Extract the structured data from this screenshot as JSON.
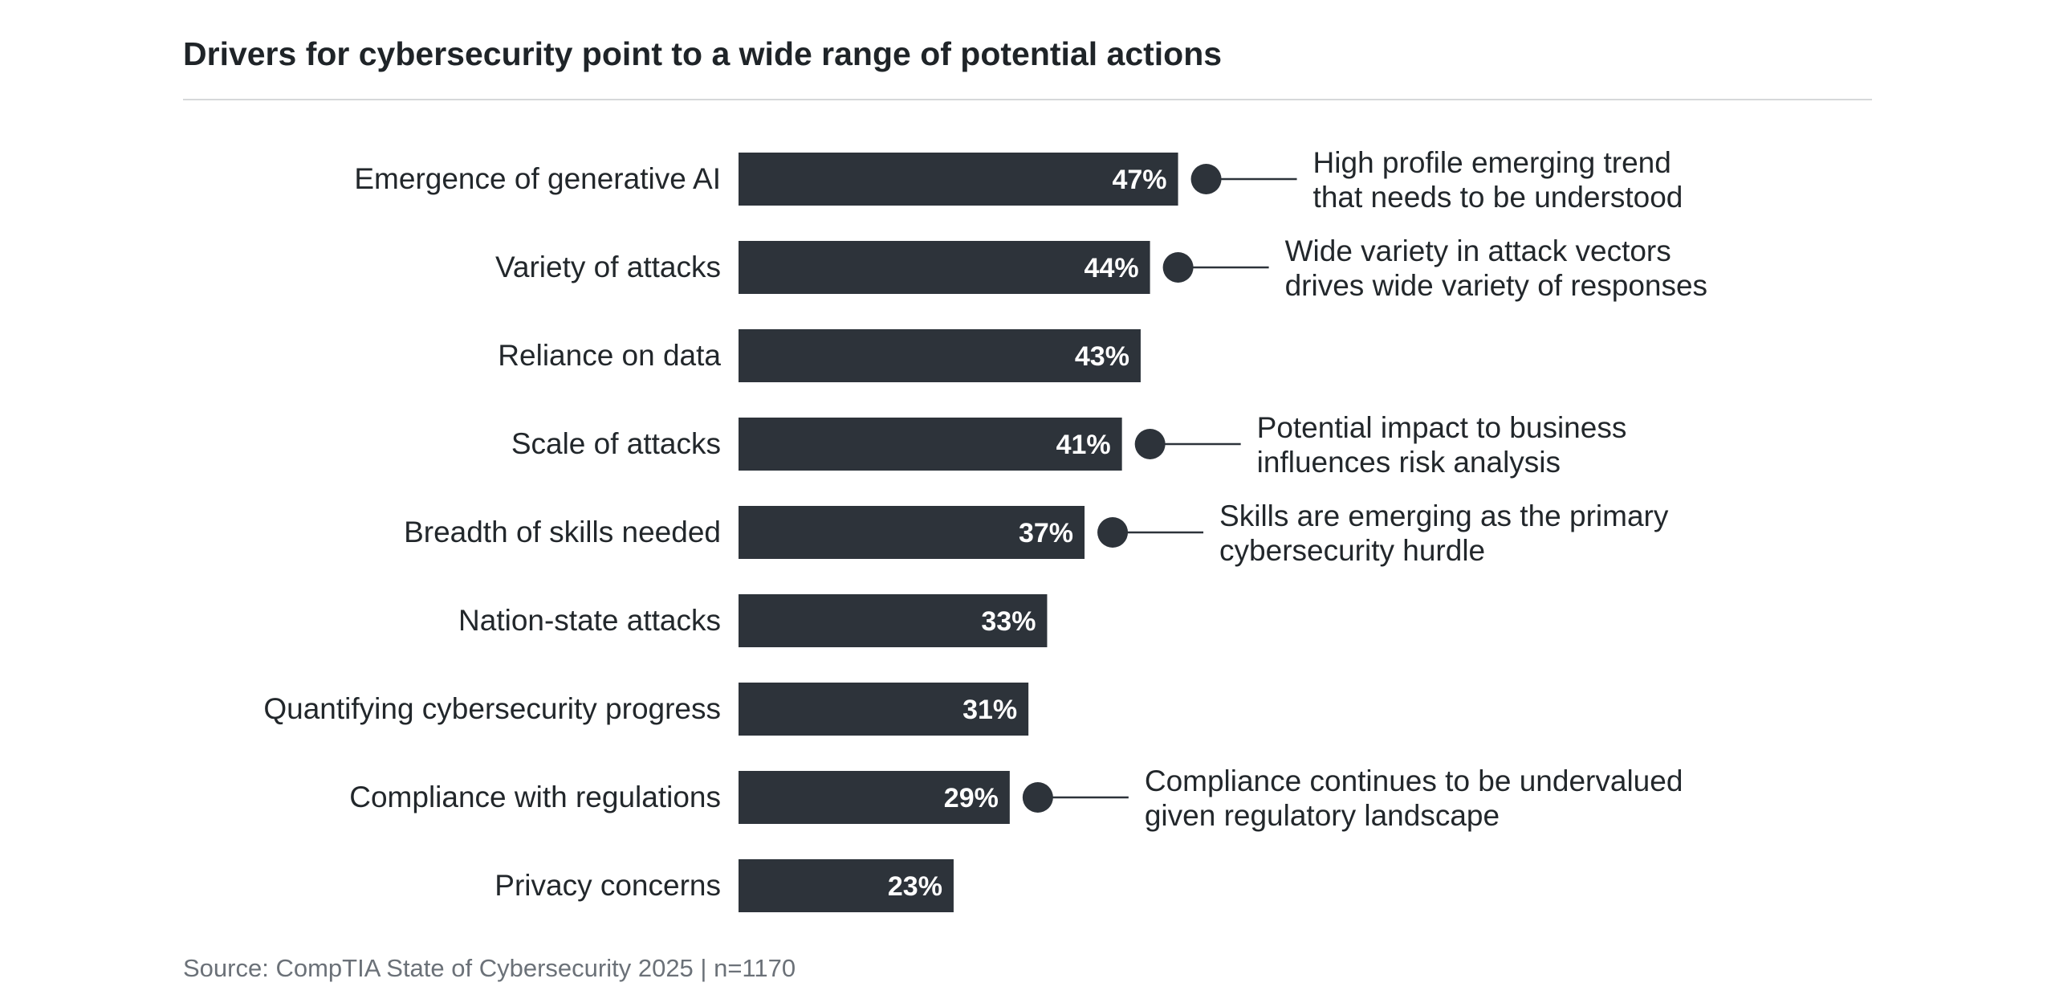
{
  "page": {
    "title": "Drivers for cybersecurity point to a wide range of potential actions",
    "source": "Source: CompTIA State of Cybersecurity 2025 | n=1170"
  },
  "colors": {
    "bar": "#2d333a",
    "bar_label": "#ffffff",
    "category_text": "#22272b",
    "annotation_text": "#22272b",
    "marker": "#2d333a",
    "rule": "#d6d8da",
    "source_text": "#6b7178"
  },
  "chart_data": {
    "type": "bar",
    "orientation": "horizontal",
    "title": "Drivers for cybersecurity point to a wide range of potential actions",
    "xlabel": "",
    "ylabel": "",
    "xlim": [
      0,
      100
    ],
    "value_suffix": "%",
    "grid": false,
    "legend": "none",
    "categories": [
      "Emergence of generative AI",
      "Variety of attacks",
      "Reliance on data",
      "Scale of attacks",
      "Breadth of skills needed",
      "Nation-state attacks",
      "Quantifying cybersecurity progress",
      "Compliance with regulations",
      "Privacy concerns"
    ],
    "values": [
      47,
      44,
      43,
      41,
      37,
      33,
      31,
      29,
      23
    ],
    "annotations": [
      {
        "category": "Emergence of generative AI",
        "lines": [
          "High profile emerging trend",
          "that needs to be understood"
        ]
      },
      {
        "category": "Variety of attacks",
        "lines": [
          "Wide variety in attack vectors",
          "drives wide variety of responses"
        ]
      },
      {
        "category": "Scale of attacks",
        "lines": [
          "Potential impact to business",
          "influences risk analysis"
        ]
      },
      {
        "category": "Breadth of skills needed",
        "lines": [
          "Skills are emerging as the primary",
          "cybersecurity hurdle"
        ]
      },
      {
        "category": "Compliance with regulations",
        "lines": [
          "Compliance continues to be undervalued",
          "given regulatory landscape"
        ]
      }
    ]
  }
}
